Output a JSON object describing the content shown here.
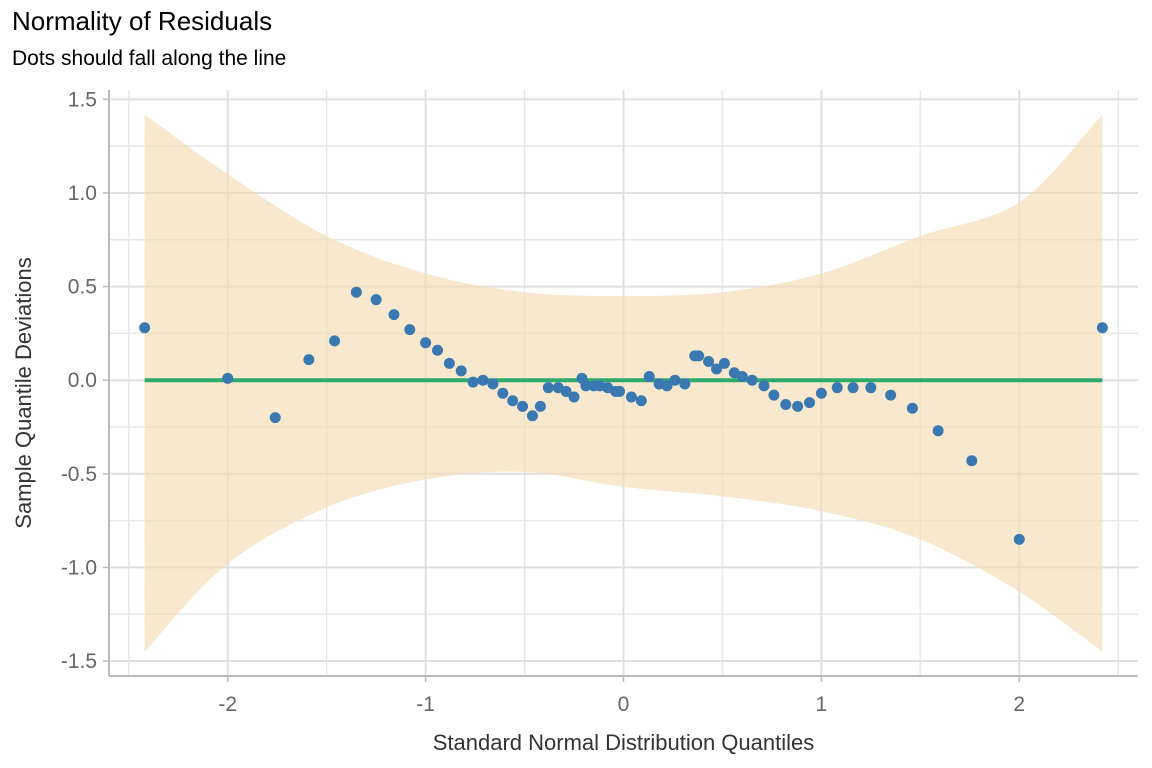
{
  "chart_data": {
    "type": "scatter",
    "title": "Normality of Residuals",
    "subtitle": "Dots should fall along the line",
    "xlabel": "Standard Normal Distribution Quantiles",
    "ylabel": "Sample Quantile Deviations",
    "xlim": [
      -2.6,
      2.6
    ],
    "ylim": [
      -1.58,
      1.55
    ],
    "x_ticks": [
      -2,
      -1,
      0,
      1,
      2
    ],
    "x_tick_labels": [
      "-2",
      "-1",
      "0",
      "1",
      "2"
    ],
    "y_ticks": [
      -1.5,
      -1.0,
      -0.5,
      0.0,
      0.5,
      1.0,
      1.5
    ],
    "y_tick_labels": [
      "-1.5",
      "-1.0",
      "-0.5",
      "0.0",
      "0.5",
      "1.0",
      "1.5"
    ],
    "grid": true,
    "colors": {
      "points": "#3a78b1",
      "reference_line": "#2eaa6e",
      "band": "#f5ddb3"
    },
    "reference_line": {
      "y": 0.0,
      "x_range": [
        -2.42,
        2.42
      ]
    },
    "confidence_band": {
      "x": [
        -2.42,
        -2.0,
        -1.5,
        -1.0,
        -0.5,
        0.0,
        0.5,
        1.0,
        1.5,
        2.0,
        2.42
      ],
      "upper": [
        1.42,
        1.1,
        0.77,
        0.57,
        0.47,
        0.45,
        0.47,
        0.57,
        0.77,
        0.95,
        1.42
      ],
      "lower": [
        -1.45,
        -0.98,
        -0.68,
        -0.53,
        -0.49,
        -0.57,
        -0.62,
        -0.7,
        -0.85,
        -1.13,
        -1.45
      ]
    },
    "points": {
      "x": [
        -2.42,
        -2.0,
        -1.76,
        -1.59,
        -1.46,
        -1.35,
        -1.25,
        -1.16,
        -1.08,
        -1.0,
        -0.94,
        -0.88,
        -0.82,
        -0.76,
        -0.71,
        -0.66,
        -0.61,
        -0.56,
        -0.51,
        -0.46,
        -0.42,
        -0.38,
        -0.33,
        -0.29,
        -0.25,
        -0.21,
        -0.19,
        -0.15,
        -0.12,
        -0.08,
        -0.04,
        -0.02,
        0.04,
        0.09,
        0.13,
        0.18,
        0.22,
        0.26,
        0.31,
        0.36,
        0.38,
        0.43,
        0.47,
        0.51,
        0.56,
        0.6,
        0.65,
        0.71,
        0.76,
        0.82,
        0.88,
        0.94,
        1.0,
        1.08,
        1.16,
        1.25,
        1.35,
        1.46,
        1.59,
        1.76,
        2.0,
        2.42
      ],
      "y": [
        0.28,
        0.01,
        -0.2,
        0.11,
        0.21,
        0.47,
        0.43,
        0.35,
        0.27,
        0.2,
        0.16,
        0.09,
        0.05,
        -0.01,
        0.0,
        -0.02,
        -0.07,
        -0.11,
        -0.14,
        -0.19,
        -0.14,
        -0.04,
        -0.04,
        -0.06,
        -0.09,
        0.01,
        -0.03,
        -0.03,
        -0.03,
        -0.04,
        -0.06,
        -0.06,
        -0.09,
        -0.11,
        0.02,
        -0.02,
        -0.03,
        0.0,
        -0.02,
        0.13,
        0.13,
        0.1,
        0.06,
        0.09,
        0.04,
        0.02,
        0.0,
        -0.03,
        -0.08,
        -0.13,
        -0.14,
        -0.12,
        -0.07,
        -0.04,
        -0.04,
        -0.04,
        -0.08,
        -0.15,
        -0.27,
        -0.43,
        -0.85,
        0.28
      ]
    }
  }
}
